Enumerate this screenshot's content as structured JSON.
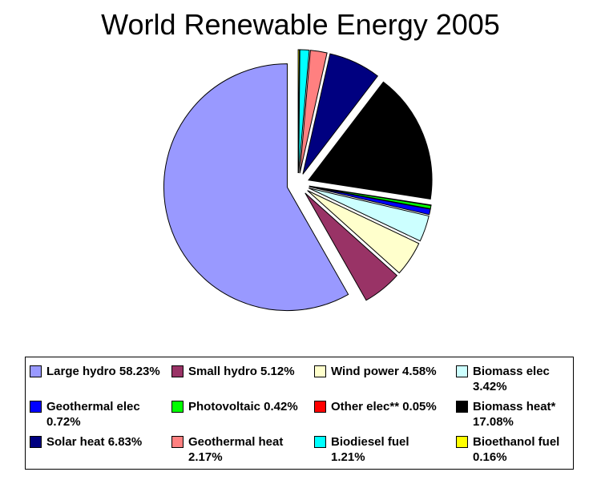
{
  "chart_data": {
    "type": "pie",
    "title": "World Renewable Energy 2005",
    "slices": [
      {
        "label": "Large hydro",
        "value": 58.23,
        "pct_text": "58.23%",
        "color": "#9999ff",
        "exploded": true
      },
      {
        "label": "Small hydro",
        "value": 5.12,
        "pct_text": "5.12%",
        "color": "#993366",
        "exploded": true
      },
      {
        "label": "Wind power",
        "value": 4.58,
        "pct_text": "4.58%",
        "color": "#ffffcc",
        "exploded": true
      },
      {
        "label": "Biomass elec",
        "value": 3.42,
        "pct_text": "3.42%",
        "color": "#ccffff",
        "exploded": true
      },
      {
        "label": "Geothermal elec",
        "value": 0.72,
        "pct_text": "0.72%",
        "color": "#0000ff",
        "exploded": true
      },
      {
        "label": "Photovoltaic",
        "value": 0.42,
        "pct_text": "0.42%",
        "color": "#00ff00",
        "exploded": true
      },
      {
        "label": "Other elec**",
        "value": 0.05,
        "pct_text": "0.05%",
        "color": "#ff0000",
        "exploded": true
      },
      {
        "label": "Biomass heat*",
        "value": 17.08,
        "pct_text": "17.08%",
        "color": "#000000",
        "exploded": true
      },
      {
        "label": "Solar heat",
        "value": 6.83,
        "pct_text": "6.83%",
        "color": "#000080",
        "exploded": true
      },
      {
        "label": "Geothermal heat",
        "value": 2.17,
        "pct_text": "2.17%",
        "color": "#ff8080",
        "exploded": true
      },
      {
        "label": "Biodiesel fuel",
        "value": 1.21,
        "pct_text": "1.21%",
        "color": "#00ffff",
        "exploded": true
      },
      {
        "label": "Bioethanol fuel",
        "value": 0.16,
        "pct_text": "0.16%",
        "color": "#ffff00",
        "exploded": true
      }
    ],
    "legend": {
      "position": "bottom",
      "entries": [
        "Large hydro 58.23%",
        "Small hydro 5.12%",
        "Wind power 4.58%",
        "Biomass elec 3.42%",
        "Geothermal elec 0.72%",
        "Photovoltaic 0.42%",
        "Other elec** 0.05%",
        "Biomass heat* 17.08%",
        "Solar heat 6.83%",
        "Geothermal heat 2.17%",
        "Biodiesel fuel 1.21%",
        "Bioethanol fuel 0.16%"
      ]
    }
  }
}
